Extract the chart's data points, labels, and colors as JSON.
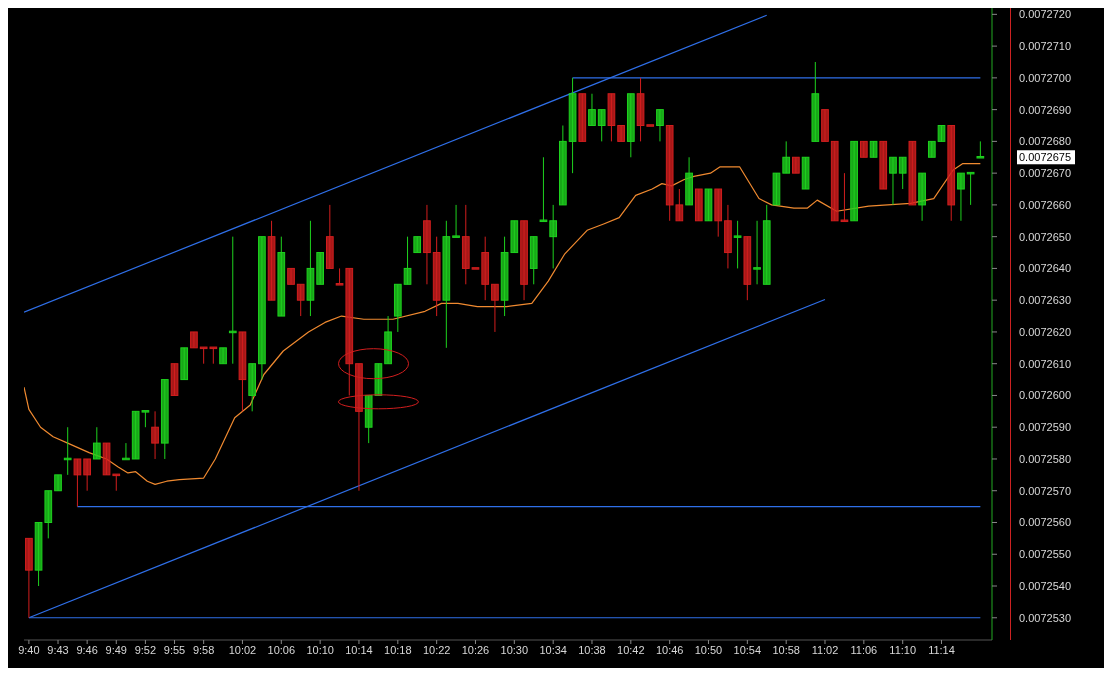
{
  "chart_data": {
    "type": "candlestick",
    "xlim": [
      9.6583,
      11.32
    ],
    "xticks": [
      {
        "value": 9.6667,
        "label": "9:40"
      },
      {
        "value": 9.7167,
        "label": "9:43"
      },
      {
        "value": 9.7667,
        "label": "9:46"
      },
      {
        "value": 9.8167,
        "label": "9:49"
      },
      {
        "value": 9.8667,
        "label": "9:52"
      },
      {
        "value": 9.9167,
        "label": "9:55"
      },
      {
        "value": 9.9667,
        "label": "9:58"
      },
      {
        "value": 10.0333,
        "label": "10:02"
      },
      {
        "value": 10.1,
        "label": "10:06"
      },
      {
        "value": 10.1667,
        "label": "10:10"
      },
      {
        "value": 10.2333,
        "label": "10:14"
      },
      {
        "value": 10.3,
        "label": "10:18"
      },
      {
        "value": 10.3667,
        "label": "10:22"
      },
      {
        "value": 10.4333,
        "label": "10:26"
      },
      {
        "value": 10.5,
        "label": "10:30"
      },
      {
        "value": 10.5667,
        "label": "10:34"
      },
      {
        "value": 10.6333,
        "label": "10:38"
      },
      {
        "value": 10.7,
        "label": "10:42"
      },
      {
        "value": 10.7667,
        "label": "10:46"
      },
      {
        "value": 10.8333,
        "label": "10:50"
      },
      {
        "value": 10.9,
        "label": "10:54"
      },
      {
        "value": 10.9667,
        "label": "10:58"
      },
      {
        "value": 11.0333,
        "label": "11:02"
      },
      {
        "value": 11.1,
        "label": "11:06"
      },
      {
        "value": 11.1667,
        "label": "11:10"
      },
      {
        "value": 11.2333,
        "label": "11:14"
      }
    ],
    "ylim": [
      0.0072523,
      0.0072722
    ],
    "yticks": [
      {
        "value": 0.007253,
        "label": "0.0072530"
      },
      {
        "value": 0.007254,
        "label": "0.0072540"
      },
      {
        "value": 0.007255,
        "label": "0.0072550"
      },
      {
        "value": 0.007256,
        "label": "0.0072560"
      },
      {
        "value": 0.007257,
        "label": "0.0072570"
      },
      {
        "value": 0.007258,
        "label": "0.0072580"
      },
      {
        "value": 0.007259,
        "label": "0.0072590"
      },
      {
        "value": 0.00726,
        "label": "0.0072600"
      },
      {
        "value": 0.007261,
        "label": "0.0072610"
      },
      {
        "value": 0.007262,
        "label": "0.0072620"
      },
      {
        "value": 0.007263,
        "label": "0.0072630"
      },
      {
        "value": 0.007264,
        "label": "0.0072640"
      },
      {
        "value": 0.007265,
        "label": "0.0072650"
      },
      {
        "value": 0.007266,
        "label": "0.0072660"
      },
      {
        "value": 0.007267,
        "label": "0.0072670"
      },
      {
        "value": 0.007268,
        "label": "0.0072680"
      },
      {
        "value": 0.007269,
        "label": "0.0072690"
      },
      {
        "value": 0.00727,
        "label": "0.0072700"
      },
      {
        "value": 0.007271,
        "label": "0.0072710"
      },
      {
        "value": 0.007272,
        "label": "0.0072720"
      }
    ],
    "series": [
      {
        "type": "candlestick",
        "color": "#1ed21e",
        "x": [
          9.6833,
          9.7,
          9.7167,
          9.7333,
          9.7833,
          9.8333,
          9.85,
          9.8667,
          9.9,
          9.9333,
          10.0,
          10.0167,
          10.05,
          10.0667,
          10.1,
          10.15,
          10.1667,
          10.25,
          10.2667,
          10.2833,
          10.3,
          10.3167,
          10.3333,
          10.3833,
          10.4,
          10.4833,
          10.5,
          10.5333,
          10.55,
          10.5667,
          10.5833,
          10.6,
          10.6333,
          10.65,
          10.7,
          10.75,
          10.8,
          10.8333,
          10.8833,
          10.9167,
          10.9333,
          10.95,
          10.9667,
          11.0,
          11.0167,
          11.0833,
          11.1167,
          11.15,
          11.1667,
          11.2,
          11.2167,
          11.2333,
          11.2667,
          11.2833,
          11.3
        ],
        "ohlc": [
          [
            0.0072545,
            0.007256,
            0.007254,
            0.007256
          ],
          [
            0.007256,
            0.007257,
            0.0072555,
            0.007257
          ],
          [
            0.007257,
            0.0072575,
            0.007257,
            0.0072575
          ],
          [
            0.007258,
            0.007259,
            0.0072575,
            0.007258
          ],
          [
            0.007258,
            0.007259,
            0.007258,
            0.0072585
          ],
          [
            0.007258,
            0.0072585,
            0.007258,
            0.007258
          ],
          [
            0.007258,
            0.0072595,
            0.007258,
            0.0072595
          ],
          [
            0.0072595,
            0.0072595,
            0.007259,
            0.0072595
          ],
          [
            0.0072585,
            0.0072605,
            0.007258,
            0.0072605
          ],
          [
            0.0072605,
            0.0072615,
            0.0072605,
            0.0072615
          ],
          [
            0.007261,
            0.0072615,
            0.007261,
            0.0072615
          ],
          [
            0.007262,
            0.007265,
            0.007261,
            0.007262
          ],
          [
            0.00726,
            0.007261,
            0.0072595,
            0.007261
          ],
          [
            0.007261,
            0.007265,
            0.0072605,
            0.007265
          ],
          [
            0.0072625,
            0.007265,
            0.0072625,
            0.0072645
          ],
          [
            0.007263,
            0.0072655,
            0.0072625,
            0.007264
          ],
          [
            0.0072635,
            0.0072645,
            0.0072635,
            0.0072645
          ],
          [
            0.007259,
            0.00726,
            0.0072585,
            0.00726
          ],
          [
            0.00726,
            0.007261,
            0.00726,
            0.007261
          ],
          [
            0.007261,
            0.0072625,
            0.007261,
            0.007262
          ],
          [
            0.0072625,
            0.0072635,
            0.007262,
            0.0072635
          ],
          [
            0.0072635,
            0.007265,
            0.0072635,
            0.007264
          ],
          [
            0.0072645,
            0.007265,
            0.0072645,
            0.007265
          ],
          [
            0.007263,
            0.0072655,
            0.0072615,
            0.007265
          ],
          [
            0.007265,
            0.007266,
            0.007265,
            0.007265
          ],
          [
            0.007263,
            0.007265,
            0.0072625,
            0.0072645
          ],
          [
            0.0072645,
            0.0072655,
            0.0072645,
            0.0072655
          ],
          [
            0.007264,
            0.007265,
            0.0072635,
            0.007265
          ],
          [
            0.0072655,
            0.0072675,
            0.0072655,
            0.0072655
          ],
          [
            0.007265,
            0.007266,
            0.007264,
            0.0072655
          ],
          [
            0.007266,
            0.0072685,
            0.007266,
            0.007268
          ],
          [
            0.007268,
            0.00727,
            0.007267,
            0.0072695
          ],
          [
            0.0072685,
            0.0072695,
            0.0072685,
            0.007269
          ],
          [
            0.0072685,
            0.007269,
            0.007268,
            0.007269
          ],
          [
            0.007268,
            0.0072695,
            0.0072675,
            0.0072695
          ],
          [
            0.0072685,
            0.007269,
            0.007268,
            0.007269
          ],
          [
            0.007266,
            0.0072675,
            0.007266,
            0.007267
          ],
          [
            0.0072655,
            0.0072665,
            0.0072655,
            0.0072665
          ],
          [
            0.007265,
            0.0072655,
            0.007264,
            0.007265
          ],
          [
            0.007264,
            0.0072655,
            0.0072635,
            0.007264
          ],
          [
            0.0072635,
            0.007266,
            0.0072635,
            0.0072655
          ],
          [
            0.007266,
            0.007267,
            0.007266,
            0.007267
          ],
          [
            0.007267,
            0.007268,
            0.007267,
            0.0072675
          ],
          [
            0.0072665,
            0.0072675,
            0.0072665,
            0.0072675
          ],
          [
            0.007268,
            0.0072705,
            0.007268,
            0.0072695
          ],
          [
            0.0072655,
            0.007268,
            0.0072655,
            0.007268
          ],
          [
            0.0072675,
            0.007268,
            0.0072675,
            0.007268
          ],
          [
            0.007267,
            0.0072675,
            0.007266,
            0.0072675
          ],
          [
            0.007267,
            0.0072675,
            0.0072665,
            0.0072675
          ],
          [
            0.007266,
            0.007267,
            0.0072655,
            0.007267
          ],
          [
            0.0072675,
            0.007268,
            0.0072675,
            0.007268
          ],
          [
            0.007268,
            0.0072685,
            0.007268,
            0.0072685
          ],
          [
            0.0072665,
            0.007267,
            0.0072655,
            0.007267
          ],
          [
            0.007267,
            0.007267,
            0.007266,
            0.007267
          ],
          [
            0.0072675,
            0.007268,
            0.0072675,
            0.0072675
          ]
        ]
      },
      {
        "type": "candlestick",
        "color": "#d21e1e",
        "x": [
          9.6667,
          9.75,
          9.7667,
          9.8,
          9.8167,
          9.8833,
          9.9167,
          9.95,
          9.9667,
          9.9833,
          10.0333,
          10.0833,
          10.1167,
          10.1333,
          10.1833,
          10.2,
          10.2167,
          10.2333,
          10.35,
          10.3667,
          10.4167,
          10.4333,
          10.45,
          10.4667,
          10.5167,
          10.6167,
          10.6667,
          10.6833,
          10.7167,
          10.7333,
          10.7667,
          10.7833,
          10.8167,
          10.85,
          10.8667,
          10.9,
          10.9833,
          11.0333,
          11.05,
          11.0667,
          11.1,
          11.1333,
          11.1833,
          11.25
        ],
        "ohlc": [
          [
            0.0072555,
            0.0072555,
            0.007253,
            0.0072545
          ],
          [
            0.007258,
            0.007258,
            0.0072565,
            0.0072575
          ],
          [
            0.007258,
            0.007258,
            0.007257,
            0.0072575
          ],
          [
            0.0072585,
            0.0072585,
            0.0072575,
            0.0072575
          ],
          [
            0.0072575,
            0.0072575,
            0.007257,
            0.0072575
          ],
          [
            0.007259,
            0.0072595,
            0.007258,
            0.0072585
          ],
          [
            0.007261,
            0.007261,
            0.00726,
            0.00726
          ],
          [
            0.007262,
            0.007262,
            0.0072615,
            0.0072615
          ],
          [
            0.0072615,
            0.0072615,
            0.007261,
            0.0072615
          ],
          [
            0.0072615,
            0.0072615,
            0.007261,
            0.0072615
          ],
          [
            0.007262,
            0.007262,
            0.0072595,
            0.0072605
          ],
          [
            0.007265,
            0.0072655,
            0.007263,
            0.007263
          ],
          [
            0.007264,
            0.007264,
            0.0072635,
            0.0072635
          ],
          [
            0.0072635,
            0.0072635,
            0.0072625,
            0.007263
          ],
          [
            0.007265,
            0.007266,
            0.007264,
            0.007264
          ],
          [
            0.0072635,
            0.007264,
            0.0072635,
            0.0072635
          ],
          [
            0.007264,
            0.007264,
            0.00726,
            0.007261
          ],
          [
            0.007261,
            0.007261,
            0.007257,
            0.0072595
          ],
          [
            0.0072655,
            0.007266,
            0.0072635,
            0.0072645
          ],
          [
            0.0072645,
            0.007265,
            0.0072625,
            0.007263
          ],
          [
            0.007265,
            0.007266,
            0.0072635,
            0.007264
          ],
          [
            0.007264,
            0.007264,
            0.007264,
            0.007264
          ],
          [
            0.0072645,
            0.007265,
            0.007263,
            0.0072635
          ],
          [
            0.0072635,
            0.0072635,
            0.007262,
            0.007263
          ],
          [
            0.0072655,
            0.0072655,
            0.007263,
            0.0072635
          ],
          [
            0.0072695,
            0.0072695,
            0.007268,
            0.007268
          ],
          [
            0.0072695,
            0.0072695,
            0.007268,
            0.0072685
          ],
          [
            0.0072685,
            0.0072685,
            0.007268,
            0.007268
          ],
          [
            0.0072695,
            0.00727,
            0.007268,
            0.0072685
          ],
          [
            0.0072685,
            0.0072685,
            0.0072685,
            0.0072685
          ],
          [
            0.0072685,
            0.0072685,
            0.0072655,
            0.007266
          ],
          [
            0.007266,
            0.0072665,
            0.0072655,
            0.0072655
          ],
          [
            0.0072665,
            0.0072665,
            0.0072655,
            0.0072655
          ],
          [
            0.0072665,
            0.0072665,
            0.007265,
            0.0072655
          ],
          [
            0.0072655,
            0.007266,
            0.007264,
            0.0072645
          ],
          [
            0.007265,
            0.007265,
            0.007263,
            0.0072635
          ],
          [
            0.0072675,
            0.0072675,
            0.007267,
            0.007267
          ],
          [
            0.007269,
            0.007269,
            0.007268,
            0.007268
          ],
          [
            0.007268,
            0.007268,
            0.0072655,
            0.0072655
          ],
          [
            0.0072655,
            0.007267,
            0.0072655,
            0.0072655
          ],
          [
            0.007268,
            0.007268,
            0.0072675,
            0.0072675
          ],
          [
            0.007268,
            0.007268,
            0.0072665,
            0.0072665
          ],
          [
            0.007268,
            0.007268,
            0.007266,
            0.007266
          ],
          [
            0.0072685,
            0.0072685,
            0.0072655,
            0.007266
          ]
        ]
      },
      {
        "type": "line",
        "color": "#f08a30",
        "x": [
          9.6583,
          9.6667,
          9.6867,
          9.7083,
          9.7333,
          9.77,
          9.8,
          9.82,
          9.8367,
          9.85,
          9.87,
          9.8833,
          9.9033,
          9.925,
          9.9667,
          9.9867,
          10.02,
          10.0467,
          10.07,
          10.1033,
          10.1467,
          10.175,
          10.2033,
          10.2417,
          10.2917,
          10.3467,
          10.375,
          10.4033,
          10.4367,
          10.4867,
          10.53,
          10.5583,
          10.5867,
          10.625,
          10.6533,
          10.68,
          10.7083,
          10.7367,
          10.7533,
          10.77,
          10.7917,
          10.8083,
          10.8367,
          10.8533,
          10.8867,
          10.92,
          10.9417,
          10.98,
          11.0033,
          11.02,
          11.0533,
          11.1083,
          11.18,
          11.22,
          11.2533,
          11.27,
          11.3
        ],
        "values": [
          0.00726026,
          0.00725956,
          0.007259,
          0.0072587,
          0.0072585,
          0.0072582,
          0.007258,
          0.00725775,
          0.00725756,
          0.0072576,
          0.0072573,
          0.0072572,
          0.0072573,
          0.00725735,
          0.0072574,
          0.007258,
          0.0072593,
          0.0072597,
          0.00726066,
          0.0072614,
          0.007262,
          0.0072623,
          0.0072625,
          0.0072624,
          0.0072624,
          0.00726265,
          0.0072629,
          0.0072629,
          0.0072628,
          0.0072628,
          0.0072629,
          0.0072636,
          0.00726446,
          0.0072652,
          0.0072654,
          0.0072656,
          0.0072663,
          0.0072665,
          0.00726667,
          0.0072666,
          0.0072668,
          0.0072669,
          0.007267,
          0.0072672,
          0.0072672,
          0.0072662,
          0.007266,
          0.0072659,
          0.0072659,
          0.00726615,
          0.0072658,
          0.00726596,
          0.00726605,
          0.0072662,
          0.0072671,
          0.0072673,
          0.0072673
        ]
      },
      {
        "type": "line",
        "color": "#2f6fe8",
        "x": [
          9.6583,
          10.9333
        ],
        "values": [
          0.00726262,
          0.00727197
        ]
      },
      {
        "type": "line",
        "color": "#2f6fe8",
        "x": [
          9.6667,
          11.0333
        ],
        "values": [
          0.007253,
          0.00726302
        ]
      },
      {
        "type": "line",
        "color": "#2f6fe8",
        "x": [
          10.6,
          11.3
        ],
        "values": [
          0.00727,
          0.00727
        ]
      },
      {
        "type": "line",
        "color": "#2f6fe8",
        "x": [
          9.75,
          11.3
        ],
        "values": [
          0.0072565,
          0.0072565
        ]
      },
      {
        "type": "line",
        "color": "#2f6fe8",
        "x": [
          9.6667,
          11.3
        ],
        "values": [
          0.007253,
          0.007253
        ]
      }
    ],
    "annotations": [
      "0.0072675"
    ]
  }
}
